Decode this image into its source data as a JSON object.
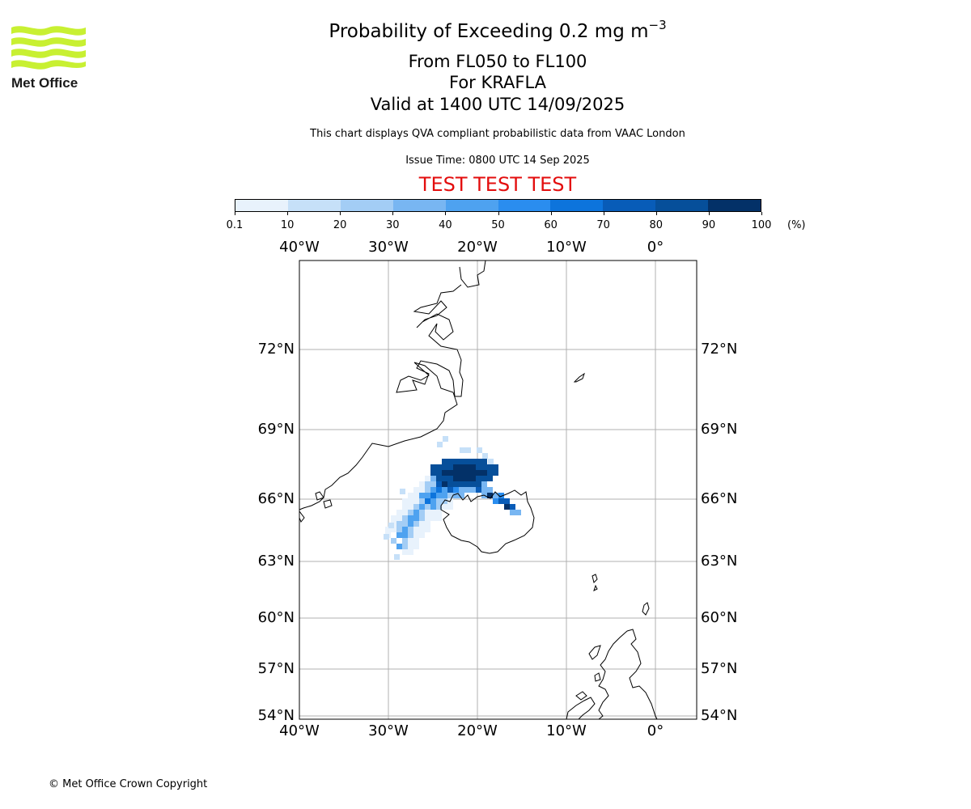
{
  "title": {
    "main": "Probability of Exceeding 0.2 mg m",
    "superscript": "−3",
    "level_range": "From FL050 to FL100",
    "volcano": "For KRAFLA",
    "valid": "Valid at 1400 UTC 14/09/2025"
  },
  "disclaimer": "This chart displays QVA compliant probabilistic data from VAAC London",
  "issue_time": "Issue Time: 0800 UTC 14 Sep 2025",
  "test_banner": "TEST TEST TEST",
  "logo": {
    "text": "Met Office",
    "icon": "met-office-wave-logo",
    "color": "#c8f032"
  },
  "colorbar": {
    "unit": "(%)",
    "ticks": [
      "0.1",
      "10",
      "20",
      "30",
      "40",
      "50",
      "60",
      "70",
      "80",
      "90",
      "100"
    ],
    "colors": [
      "#e8f2fc",
      "#c6e0f8",
      "#a3cdf5",
      "#78b6f2",
      "#4ea2f0",
      "#2a8def",
      "#0d74dc",
      "#085cb8",
      "#064f9a",
      "#033168"
    ]
  },
  "map": {
    "lon_labels": [
      "40°W",
      "30°W",
      "20°W",
      "10°W",
      "0°"
    ],
    "lat_labels": [
      "72°N",
      "69°N",
      "66°N",
      "63°N",
      "60°N",
      "57°N",
      "54°N"
    ],
    "gridline_color": "#b0b0b0"
  },
  "copyright": "© Met Office Crown Copyright"
}
